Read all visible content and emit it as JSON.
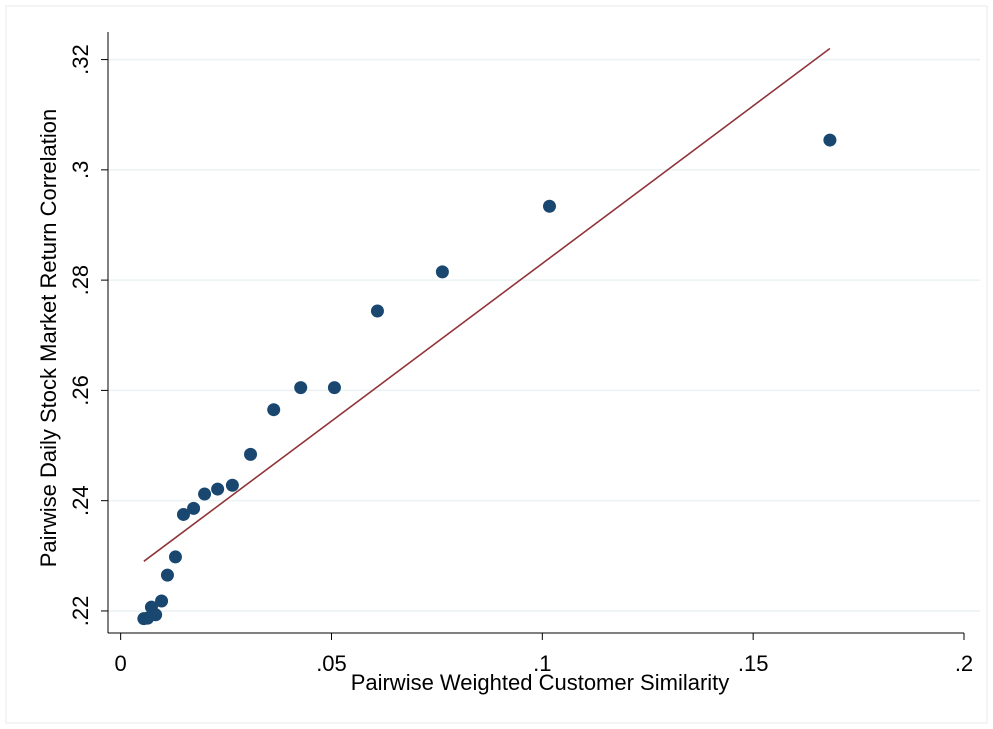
{
  "chart_data": {
    "type": "scatter",
    "x_label": "Pairwise Weighted Customer Similarity",
    "y_label": "Pairwise Daily Stock Market Return Correlation",
    "points": {
      "color": "#1a476f",
      "x": [
        0.0055,
        0.0064,
        0.0073,
        0.0083,
        0.0097,
        0.0111,
        0.013,
        0.0149,
        0.0173,
        0.0199,
        0.023,
        0.0265,
        0.0308,
        0.0363,
        0.0427,
        0.0507,
        0.0609,
        0.0763,
        0.1017,
        0.1682
      ],
      "y": [
        0.2186,
        0.2187,
        0.2207,
        0.2193,
        0.2218,
        0.2265,
        0.2298,
        0.2375,
        0.2386,
        0.2412,
        0.2421,
        0.2428,
        0.2484,
        0.2565,
        0.2605,
        0.2605,
        0.2744,
        0.2815,
        0.2934,
        0.3054
      ]
    },
    "fit_line": {
      "color": "#90353b",
      "x": [
        0.0055,
        0.1682
      ],
      "y": [
        0.229,
        0.322
      ]
    },
    "xlim": [
      -0.003,
      0.2
    ],
    "ylim": [
      0.216,
      0.325
    ],
    "xticks": [
      0,
      {
        "value": 0.05,
        "label": ".05"
      },
      {
        "value": 0.1,
        "label": ".1"
      },
      {
        "value": 0.15,
        "label": ".15"
      },
      {
        "value": 0.2,
        "label": ".2"
      }
    ],
    "yticks": [
      {
        "value": 0.22,
        "label": ".22"
      },
      {
        "value": 0.24,
        "label": ".24"
      },
      {
        "value": 0.26,
        "label": ".26"
      },
      {
        "value": 0.28,
        "label": ".28"
      },
      {
        "value": 0.3,
        "label": ".3"
      },
      {
        "value": 0.32,
        "label": ".32"
      }
    ],
    "grid": true
  }
}
